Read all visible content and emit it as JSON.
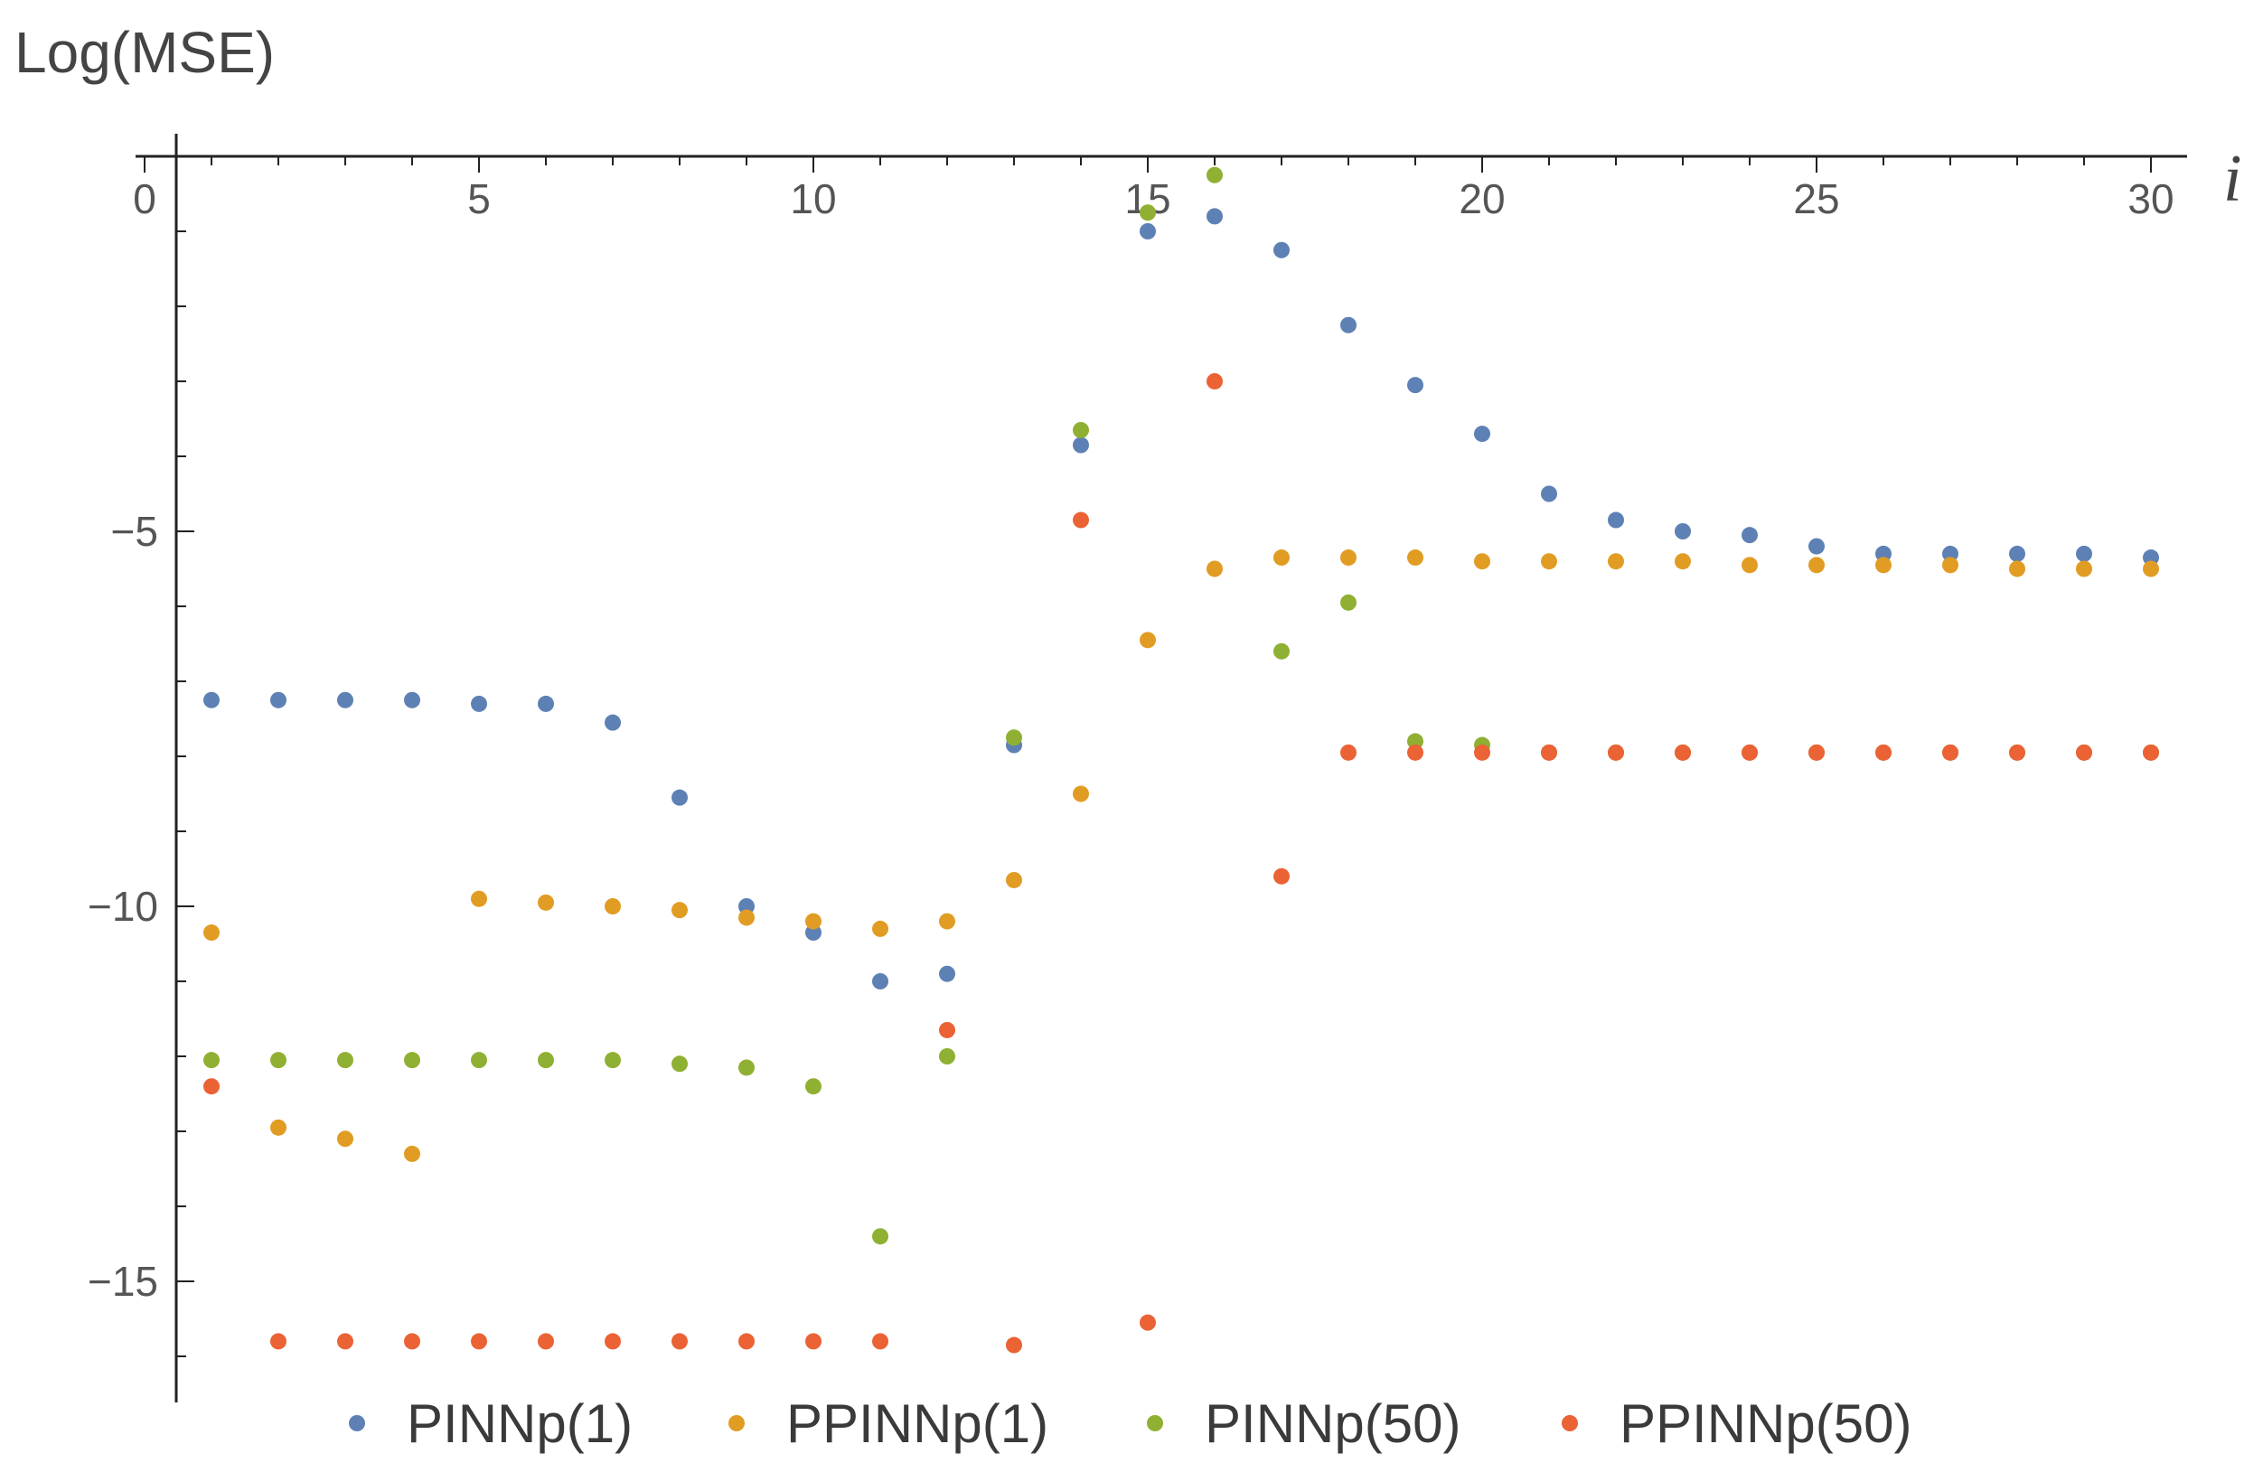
{
  "chart_data": {
    "type": "scatter",
    "title": "",
    "ylabel": "Log(MSE)",
    "xlabel": "i",
    "xlim": [
      0,
      30
    ],
    "ylim": [
      -16.5,
      0
    ],
    "xticks": [
      0,
      5,
      10,
      15,
      20,
      25,
      30
    ],
    "yticks": [
      -5,
      -10,
      -15
    ],
    "xtick_labels": [
      "0",
      "5",
      "10",
      "15",
      "20",
      "25",
      "30"
    ],
    "ytick_labels": [
      "-5",
      "-10",
      "-15"
    ],
    "grid": false,
    "legend_position": "bottom",
    "x": [
      1,
      2,
      3,
      4,
      5,
      6,
      7,
      8,
      9,
      10,
      11,
      12,
      13,
      14,
      15,
      16,
      17,
      18,
      19,
      20,
      21,
      22,
      23,
      24,
      25,
      26,
      27,
      28,
      29,
      30
    ],
    "series": [
      {
        "name": "PINNp(1)",
        "color": "#5e81b5",
        "values": [
          -7.25,
          -7.25,
          -7.25,
          -7.25,
          -7.3,
          -7.3,
          -7.55,
          -8.55,
          -10.0,
          -10.35,
          -11.0,
          -10.9,
          -7.85,
          -3.85,
          -1.0,
          -0.8,
          -1.25,
          -2.25,
          -3.05,
          -3.7,
          -4.5,
          -4.85,
          -5.0,
          -5.05,
          -5.2,
          -5.3,
          -5.3,
          -5.3,
          -5.3,
          -5.35
        ]
      },
      {
        "name": "PPINNp(1)",
        "color": "#e19c24",
        "values": [
          -10.35,
          -12.95,
          -13.1,
          -13.3,
          -9.9,
          -9.95,
          -10.0,
          -10.05,
          -10.15,
          -10.2,
          -10.3,
          -10.2,
          -9.65,
          -8.5,
          -6.45,
          -5.5,
          -5.35,
          -5.35,
          -5.35,
          -5.4,
          -5.4,
          -5.4,
          -5.4,
          -5.45,
          -5.45,
          -5.45,
          -5.45,
          -5.5,
          -5.5,
          -5.5
        ]
      },
      {
        "name": "PINNp(50)",
        "color": "#8fb032",
        "values": [
          -12.05,
          -12.05,
          -12.05,
          -12.05,
          -12.05,
          -12.05,
          -12.05,
          -12.1,
          -12.15,
          -12.4,
          -14.4,
          -12.0,
          -7.75,
          -3.65,
          -0.75,
          -0.25,
          -6.6,
          -5.95,
          -7.8,
          -7.85,
          -7.95,
          -7.95,
          -7.95,
          -7.95,
          -7.95,
          -7.95,
          -7.95,
          -7.95,
          -7.95,
          -7.95
        ]
      },
      {
        "name": "PPINNp(50)",
        "color": "#eb6235",
        "values": [
          -12.4,
          -15.8,
          -15.8,
          -15.8,
          -15.8,
          -15.8,
          -15.8,
          -15.8,
          -15.8,
          -15.8,
          -15.8,
          -11.65,
          -15.85,
          -4.85,
          -15.55,
          -3.0,
          -9.6,
          -7.95,
          -7.95,
          -7.95,
          -7.95,
          -7.95,
          -7.95,
          -7.95,
          -7.95,
          -7.95,
          -7.95,
          -7.95,
          -7.95,
          -7.95
        ]
      }
    ]
  }
}
